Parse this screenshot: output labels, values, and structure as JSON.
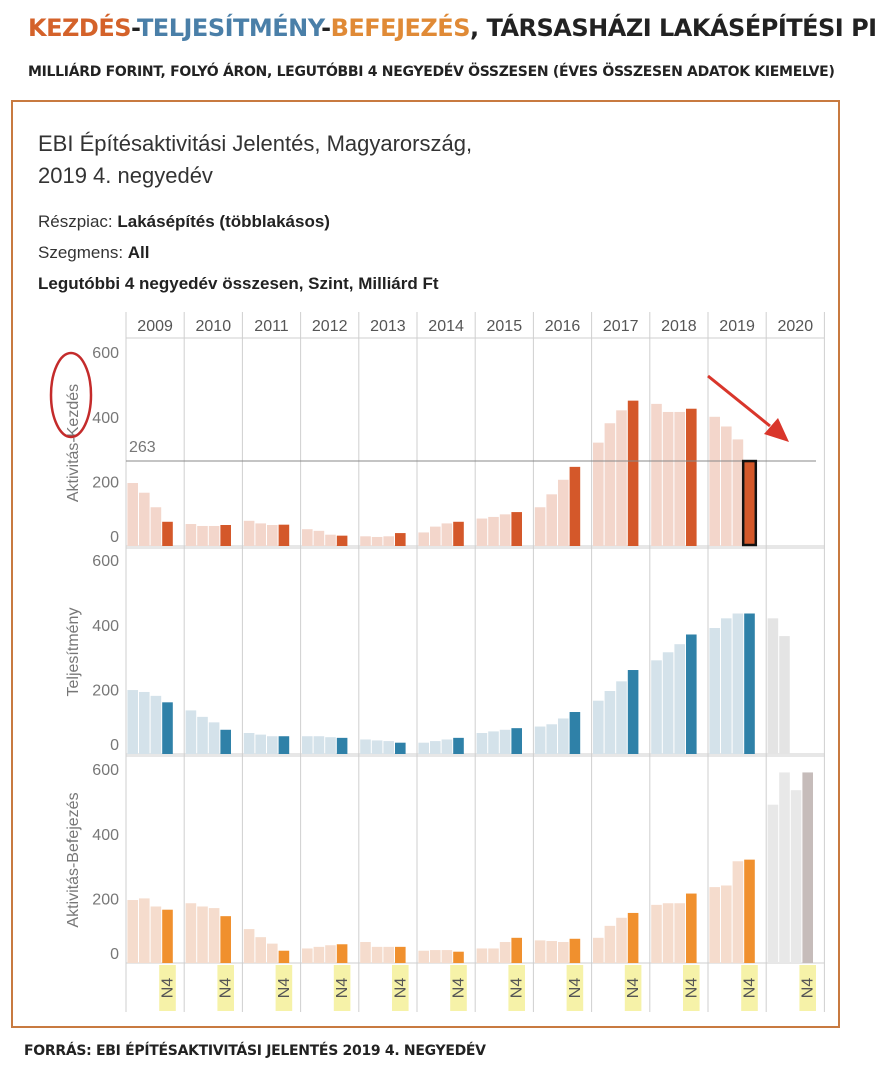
{
  "header": {
    "part1": "KEZDÉS",
    "sep1": "-",
    "part2": "TELJESÍTMÉNY",
    "sep2": "-",
    "part3": "BEFEJEZÉS",
    "rest": ", TÁRSASHÁZI LAKÁSÉPÍTÉSI PIAC",
    "subtitle": "MILLIÁRD FORINT, FOLYÓ ÁRON, LEGUTÓBBI 4 NEGYEDÉV ÖSSZESEN (ÉVES ÖSSZESEN ADATOK KIEMELVE)",
    "colors": {
      "kezdes": "#d4622a",
      "teljesitmeny": "#4a7fa8",
      "befejezes": "#e08a36",
      "dark": "#222222"
    }
  },
  "chart_header": {
    "title_line1": "EBI Építésaktivitási Jelentés, Magyarország,",
    "title_line2": "2019 4. negyedév",
    "reszpiac_label": "Részpiac: ",
    "reszpiac_value": "Lakásépítés (többlakásos)",
    "szegmens_label": "Szegmens: ",
    "szegmens_value": "All",
    "measure": "Legutóbbi 4 negyedév összesen, Szint, Milliárd Ft"
  },
  "source": "FORRÁS: EBI ÉPÍTÉSAKTIVITÁSI JELENTÉS 2019 4. NEGYEDÉV",
  "chart_data": {
    "type": "bar",
    "years": [
      "2009",
      "2010",
      "2011",
      "2012",
      "2013",
      "2014",
      "2015",
      "2016",
      "2017",
      "2018",
      "2019",
      "2020"
    ],
    "quarter_label": "N4",
    "reference_line": {
      "panel": "Aktivitás-Kezdés",
      "value": 263,
      "label": "263"
    },
    "ylim": [
      0,
      650
    ],
    "yticks": [
      0,
      200,
      400,
      600
    ],
    "series": [
      {
        "name": "Aktivitás-Kezdés",
        "light_color": "#f3d6cb",
        "dark_color": "#d4582a",
        "values": [
          195,
          165,
          120,
          75,
          68,
          62,
          62,
          65,
          78,
          70,
          65,
          66,
          52,
          47,
          35,
          32,
          30,
          28,
          30,
          40,
          42,
          60,
          70,
          75,
          85,
          90,
          98,
          105,
          120,
          160,
          205,
          245,
          320,
          380,
          420,
          450,
          440,
          415,
          415,
          425,
          400,
          370,
          330,
          263
        ]
      },
      {
        "name": "Teljesítmény",
        "light_color": "#d4e2ea",
        "dark_color": "#2f81a8",
        "future_color": "#e4e4e4",
        "values": [
          198,
          192,
          180,
          160,
          135,
          115,
          98,
          75,
          65,
          60,
          55,
          55,
          55,
          55,
          52,
          50,
          45,
          42,
          40,
          35,
          35,
          40,
          45,
          50,
          65,
          70,
          75,
          80,
          85,
          92,
          110,
          130,
          165,
          195,
          225,
          260,
          290,
          315,
          340,
          370,
          390,
          420,
          435,
          435,
          420,
          365
        ]
      },
      {
        "name": "Aktivitás-Befejezés",
        "light_color": "#f5dccd",
        "dark_color": "#f0902e",
        "future_color": "#e8e8e8",
        "last_color": "#c6bcba",
        "values": [
          195,
          200,
          175,
          165,
          185,
          175,
          170,
          145,
          105,
          80,
          60,
          38,
          45,
          50,
          55,
          58,
          65,
          50,
          50,
          50,
          38,
          40,
          40,
          35,
          45,
          45,
          65,
          78,
          70,
          68,
          65,
          75,
          78,
          115,
          140,
          155,
          180,
          185,
          185,
          215,
          235,
          240,
          315,
          320,
          490,
          590,
          535,
          590
        ]
      }
    ]
  }
}
